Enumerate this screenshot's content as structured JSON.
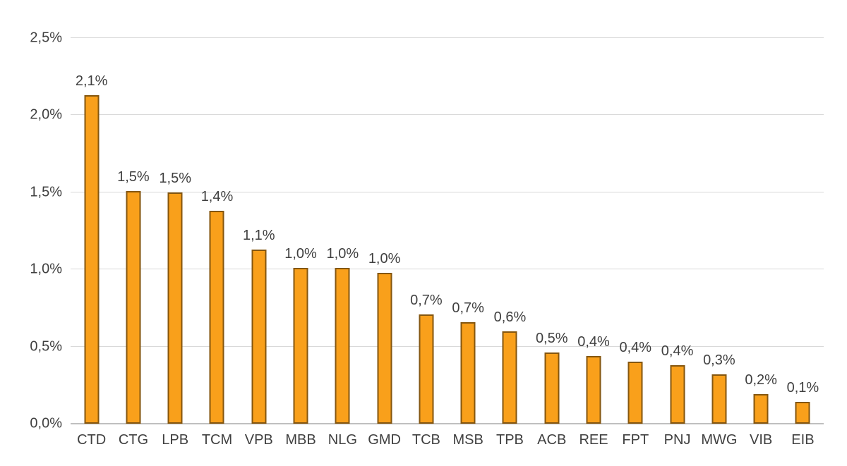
{
  "chart_data": {
    "type": "bar",
    "title": "",
    "xlabel": "",
    "ylabel": "",
    "categories": [
      "CTD",
      "CTG",
      "LPB",
      "TCM",
      "VPB",
      "MBB",
      "NLG",
      "GMD",
      "TCB",
      "MSB",
      "TPB",
      "ACB",
      "REE",
      "FPT",
      "PNJ",
      "MWG",
      "VIB",
      "EIB"
    ],
    "values": [
      2.13,
      1.51,
      1.5,
      1.38,
      1.13,
      1.01,
      1.01,
      0.98,
      0.71,
      0.66,
      0.6,
      0.46,
      0.44,
      0.4,
      0.38,
      0.32,
      0.19,
      0.14
    ],
    "data_labels": [
      "2,1%",
      "1,5%",
      "1,5%",
      "1,4%",
      "1,1%",
      "1,0%",
      "1,0%",
      "1,0%",
      "0,7%",
      "0,7%",
      "0,6%",
      "0,5%",
      "0,4%",
      "0,4%",
      "0,4%",
      "0,3%",
      "0,2%",
      "0,1%"
    ],
    "ylim": [
      0,
      2.5
    ],
    "ytick_labels": [
      "0,0%",
      "0,5%",
      "1,0%",
      "1,5%",
      "2,0%",
      "2,5%"
    ],
    "grid": true,
    "legend": false,
    "colors": {
      "bar_fill": "#F9A01B",
      "bar_border": "#84560F",
      "gridline": "#D9D9D9",
      "axis_line": "#BFBFBF",
      "text": "#404040",
      "background": "#FFFFFF"
    }
  }
}
